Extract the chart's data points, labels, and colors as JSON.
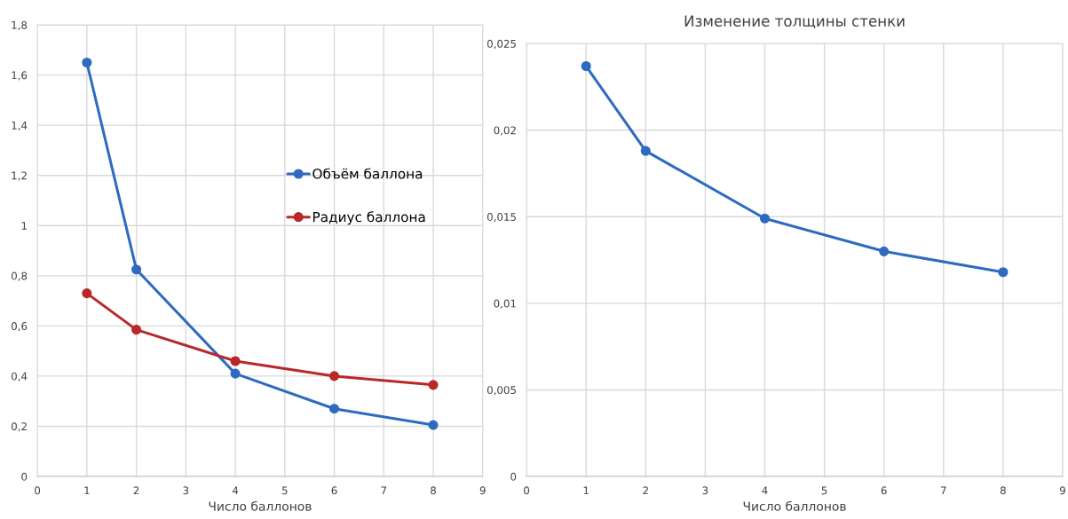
{
  "chart_data": [
    {
      "type": "line",
      "xlabel": "Число баллонов",
      "x": [
        1,
        2,
        4,
        6,
        8
      ],
      "series": [
        {
          "name": "Объём баллона",
          "color": "#2e6bc0",
          "values": [
            1.65,
            0.825,
            0.41,
            0.27,
            0.205
          ]
        },
        {
          "name": "Радиус баллона",
          "color": "#b8282b",
          "values": [
            0.73,
            0.585,
            0.46,
            0.4,
            0.365
          ]
        }
      ],
      "xlim": [
        0,
        9
      ],
      "xticks": [
        0,
        1,
        2,
        3,
        4,
        5,
        6,
        7,
        8,
        9
      ],
      "ylim": [
        0,
        1.8
      ],
      "yticks": [
        0,
        {
          "value": 0.2,
          "label": "0,2"
        },
        {
          "value": 0.4,
          "label": "0,4"
        },
        {
          "value": 0.6,
          "label": "0,6"
        },
        {
          "value": 0.8,
          "label": "0,8"
        },
        1,
        {
          "value": 1.2,
          "label": "1,2"
        },
        {
          "value": 1.4,
          "label": "1,4"
        },
        {
          "value": 1.6,
          "label": "1,6"
        },
        {
          "value": 1.8,
          "label": "1,8"
        }
      ],
      "grid": true,
      "legend": "right",
      "marker": "circle",
      "line_style": "solid"
    },
    {
      "type": "line",
      "title": "Изменение толщины стенки",
      "xlabel": "Число баллонов",
      "x": [
        1,
        2,
        4,
        6,
        8
      ],
      "series": [
        {
          "color": "#2e6bc0",
          "values": [
            0.0237,
            0.0188,
            0.0149,
            0.013,
            0.0118
          ]
        }
      ],
      "xlim": [
        0,
        9
      ],
      "xticks": [
        0,
        1,
        2,
        3,
        4,
        5,
        6,
        7,
        8,
        9
      ],
      "ylim": [
        0,
        0.025
      ],
      "yticks": [
        0,
        {
          "value": 0.005,
          "label": "0,005"
        },
        {
          "value": 0.01,
          "label": "0,01"
        },
        {
          "value": 0.015,
          "label": "0,015"
        },
        {
          "value": 0.02,
          "label": "0,02"
        },
        {
          "value": 0.025,
          "label": "0,025"
        }
      ],
      "grid": true,
      "marker": "circle",
      "line_style": "solid"
    }
  ]
}
